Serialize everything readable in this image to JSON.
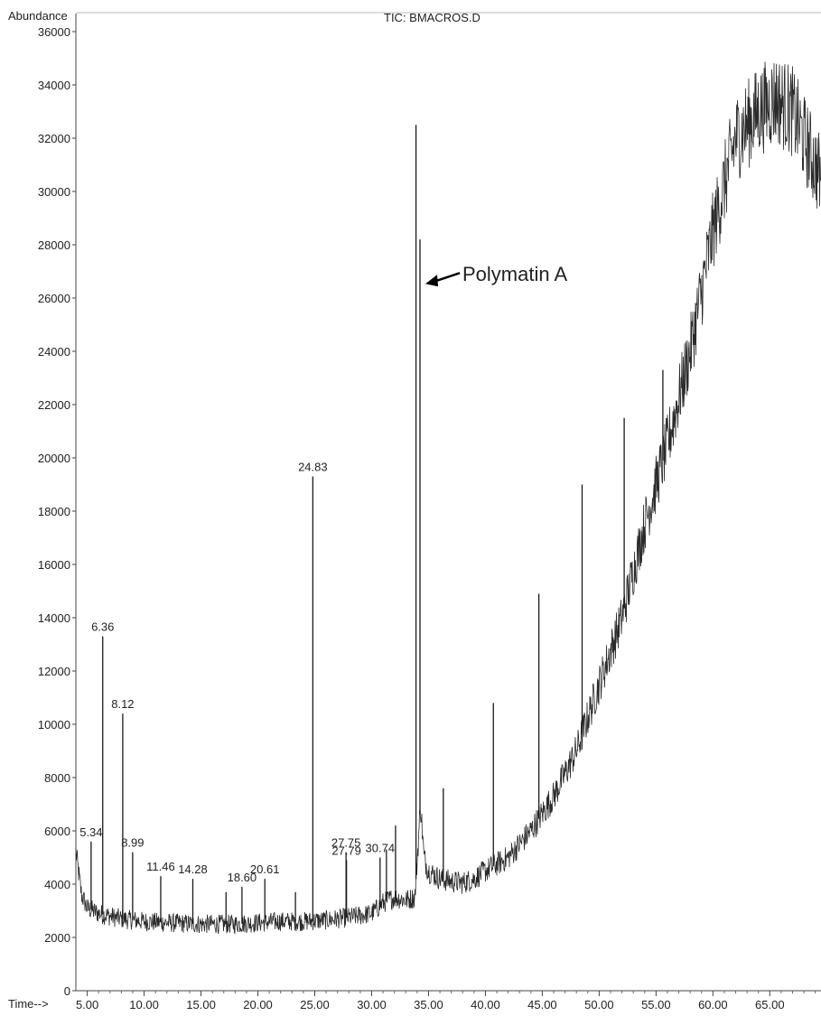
{
  "chart_data": {
    "type": "line",
    "title": "TIC: BMACROS.D",
    "ylabel": "Abundance",
    "xlabel": "Time-->",
    "xlim": [
      4.0,
      69.5
    ],
    "ylim": [
      0,
      36000
    ],
    "yticks": [
      0,
      2000,
      4000,
      6000,
      8000,
      10000,
      12000,
      14000,
      16000,
      18000,
      20000,
      22000,
      24000,
      26000,
      28000,
      30000,
      32000,
      34000,
      36000
    ],
    "xticks": [
      5.0,
      10.0,
      15.0,
      20.0,
      25.0,
      30.0,
      35.0,
      40.0,
      45.0,
      50.0,
      55.0,
      60.0,
      65.0
    ],
    "xtick_labels": [
      "5.00",
      "10.00",
      "15.00",
      "20.00",
      "25.00",
      "30.00",
      "35.00",
      "40.00",
      "45.00",
      "50.00",
      "55.00",
      "60.00",
      "65.00"
    ],
    "grid": false,
    "series": [
      {
        "x": [
          4.0,
          4.5,
          5.0,
          6.0,
          8.0,
          10.0,
          12.0,
          15.0,
          18.0,
          20.0,
          22.0,
          24.0,
          26.0,
          28.0,
          30.0,
          31.0,
          32.0,
          33.0,
          33.8,
          34.3,
          34.6,
          35.0,
          36.0,
          37.0,
          38.0,
          39.0,
          40.0,
          42.0,
          44.0,
          46.0,
          48.0,
          50.0,
          52.0,
          54.0,
          56.0,
          58.0,
          60.0,
          62.0,
          64.0,
          65.5,
          67.0,
          68.0,
          69.5
        ],
        "y": [
          5200,
          3600,
          3100,
          2900,
          2700,
          2600,
          2550,
          2500,
          2500,
          2550,
          2600,
          2600,
          2650,
          2750,
          2900,
          3300,
          3500,
          3400,
          3500,
          7000,
          5000,
          4500,
          4200,
          4100,
          4050,
          4200,
          4500,
          5000,
          6000,
          7300,
          9000,
          11500,
          14000,
          17500,
          20500,
          24000,
          28500,
          32000,
          33000,
          33500,
          33000,
          32000,
          30500
        ]
      }
    ],
    "peaks": [
      {
        "x": 5.34,
        "y": 5600,
        "label": "5.34"
      },
      {
        "x": 6.36,
        "y": 13300,
        "label": "6.36"
      },
      {
        "x": 8.12,
        "y": 10400,
        "label": "8.12"
      },
      {
        "x": 8.99,
        "y": 5200,
        "label": "8.99"
      },
      {
        "x": 11.46,
        "y": 4300,
        "label": "11.46"
      },
      {
        "x": 14.28,
        "y": 4200,
        "label": "14.28"
      },
      {
        "x": 17.2,
        "y": 3700,
        "label": ""
      },
      {
        "x": 18.6,
        "y": 3900,
        "label": "18.60"
      },
      {
        "x": 20.61,
        "y": 4200,
        "label": "20.61"
      },
      {
        "x": 23.3,
        "y": 3700,
        "label": ""
      },
      {
        "x": 24.83,
        "y": 19300,
        "label": "24.83"
      },
      {
        "x": 27.75,
        "y": 5200,
        "label": "27.75"
      },
      {
        "x": 27.79,
        "y": 4900,
        "label": "27.79"
      },
      {
        "x": 30.74,
        "y": 5000,
        "label": "30.74"
      },
      {
        "x": 31.3,
        "y": 5300,
        "label": ""
      },
      {
        "x": 32.1,
        "y": 6200,
        "label": ""
      },
      {
        "x": 33.9,
        "y": 32500,
        "label": ""
      },
      {
        "x": 34.25,
        "y": 28200,
        "label": ""
      },
      {
        "x": 36.3,
        "y": 7600,
        "label": ""
      },
      {
        "x": 40.7,
        "y": 10800,
        "label": ""
      },
      {
        "x": 44.7,
        "y": 14900,
        "label": ""
      },
      {
        "x": 48.5,
        "y": 19000,
        "label": ""
      },
      {
        "x": 52.2,
        "y": 21500,
        "label": ""
      },
      {
        "x": 55.6,
        "y": 23300,
        "label": ""
      }
    ],
    "annotations": [
      {
        "text": "Polymatin A",
        "x": 34.25,
        "y": 26600
      }
    ]
  }
}
